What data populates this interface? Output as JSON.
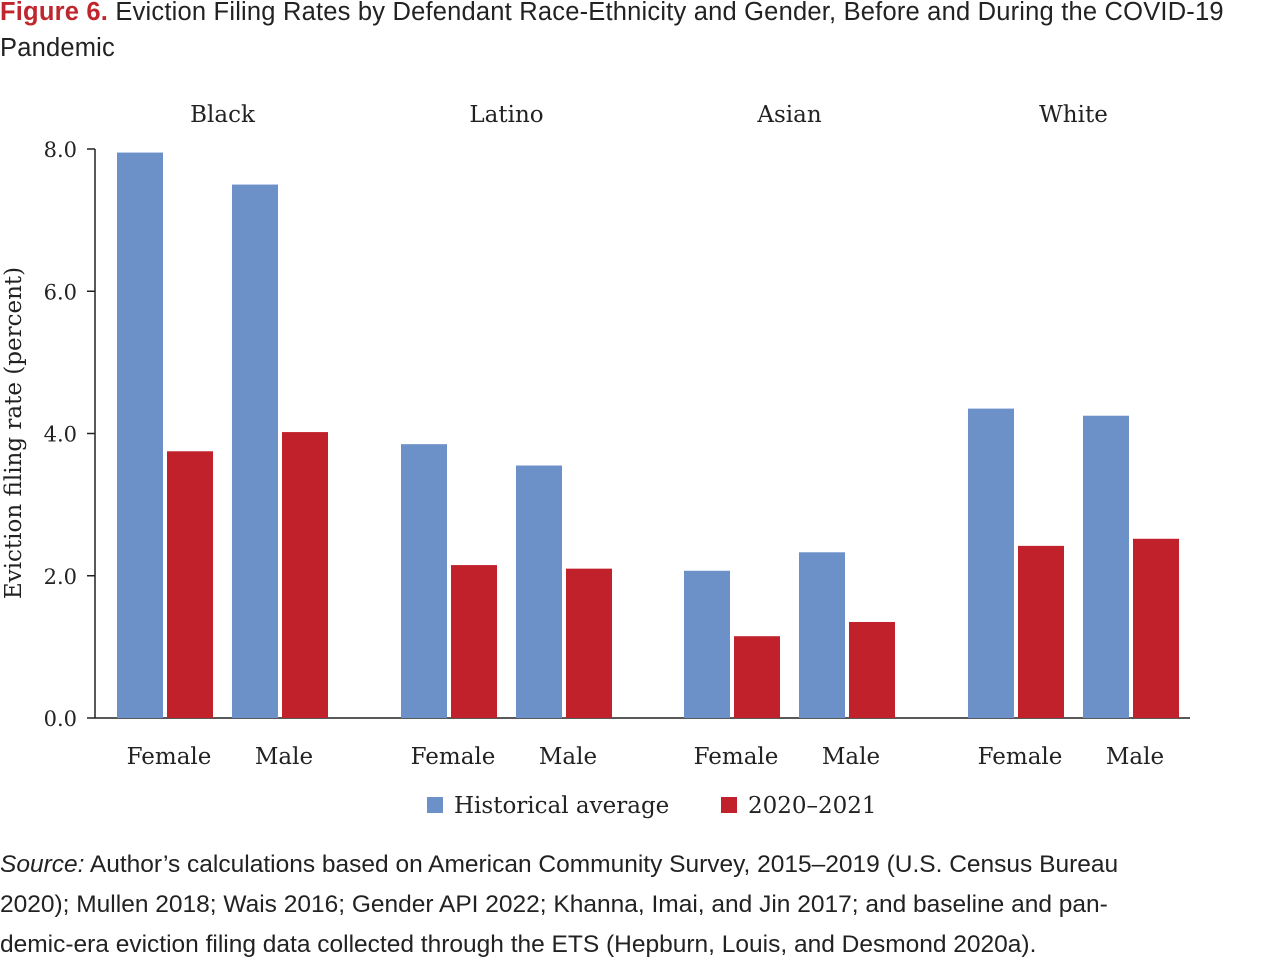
{
  "figure": {
    "label": "Figure 6.",
    "title": "Eviction Filing Rates by Defendant Race-Ethnicity and Gender, Before and During the COVID-19 Pandemic"
  },
  "source": {
    "label": "Source:",
    "line1": "Author’s calculations based on American Community Survey, 2015–2019 (U.S. Census Bureau",
    "line2": "2020); Mullen 2018; Wais 2016; Gender API 2022; Khanna, Imai, and Jin 2017; and baseline and pan-",
    "line3": "demic-era eviction filing data collected through the ETS (Hepburn, Louis, and Desmond 2020a)."
  },
  "chart_data": {
    "type": "bar",
    "ylabel": "Eviction filing rate (percent)",
    "ylim": [
      0,
      8.0
    ],
    "yticks": [
      "0.0",
      "2.0",
      "4.0",
      "6.0",
      "8.0"
    ],
    "groups": [
      "Black",
      "Latino",
      "Asian",
      "White"
    ],
    "categories": [
      "Female",
      "Male",
      "Female",
      "Male",
      "Female",
      "Male",
      "Female",
      "Male"
    ],
    "series": [
      {
        "name": "Historical average",
        "color": "#6c91c9",
        "values": [
          7.95,
          7.5,
          3.85,
          3.55,
          2.07,
          2.33,
          4.35,
          4.25
        ]
      },
      {
        "name": "2020–2021",
        "color": "#c0212a",
        "values": [
          3.75,
          4.02,
          2.15,
          2.1,
          1.15,
          1.35,
          2.42,
          2.52
        ]
      }
    ],
    "legend_position": "bottom",
    "grid": false
  }
}
